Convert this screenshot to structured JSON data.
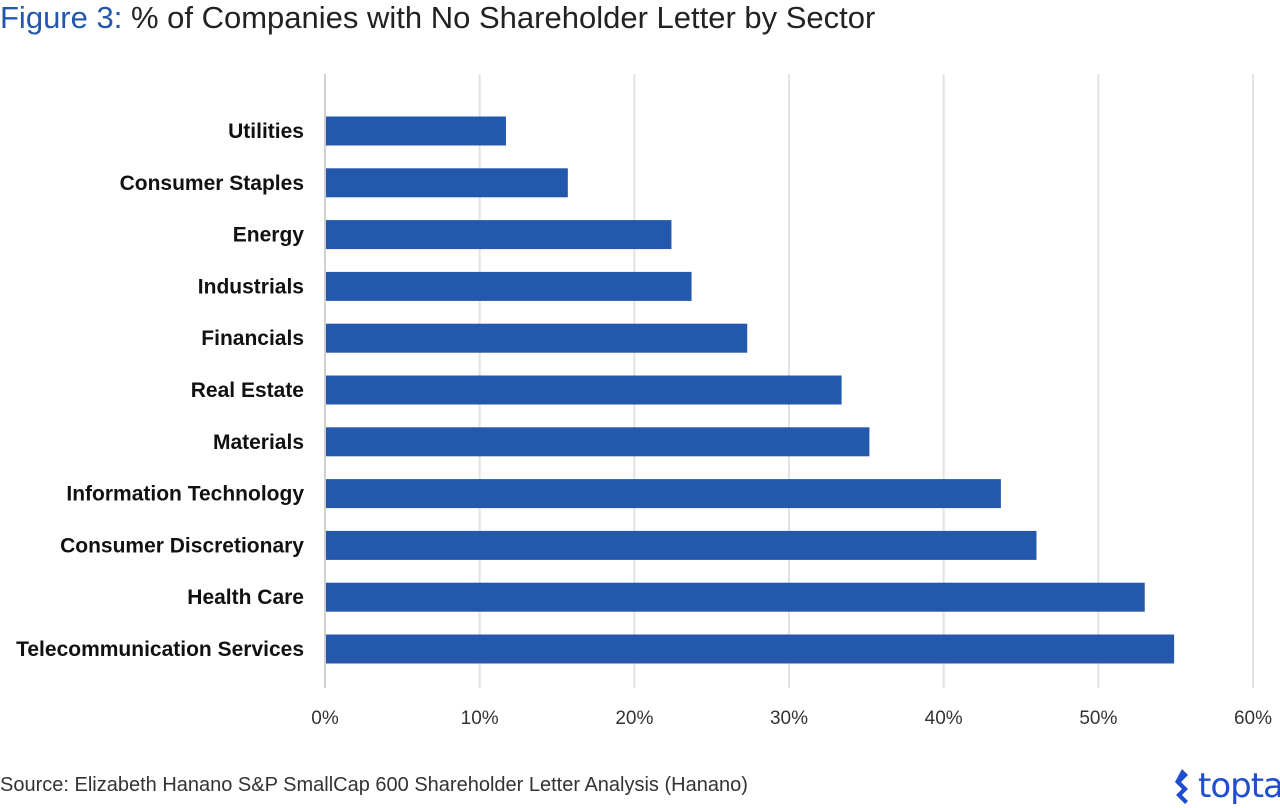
{
  "title_prefix": "Figure 3:",
  "title_text": " % of Companies with No Shareholder Letter by Sector",
  "source": "Source: Elizabeth Hanano S&P SmallCap 600 Shareholder Letter Analysis (Hanano)",
  "logo": "toptal",
  "colors": {
    "bar": "#2458ad",
    "accent": "#2458ad",
    "grid": "#e2e2e2",
    "logo": "#204ecf"
  },
  "chart_data": {
    "type": "bar",
    "orientation": "horizontal",
    "title": "% of Companies with No Shareholder Letter by Sector",
    "categories": [
      "Utilities",
      "Consumer Staples",
      "Energy",
      "Industrials",
      "Financials",
      "Real Estate",
      "Materials",
      "Information Technology",
      "Consumer Discretionary",
      "Health Care",
      "Telecommunication Services"
    ],
    "values": [
      11.7,
      15.7,
      22.4,
      23.7,
      27.3,
      33.4,
      35.2,
      43.7,
      46.0,
      53.0,
      54.9
    ],
    "unit": "%",
    "xlim": [
      0,
      60
    ],
    "xticks": [
      "0%",
      "10%",
      "20%",
      "30%",
      "40%",
      "50%",
      "60%"
    ],
    "grid": true
  }
}
